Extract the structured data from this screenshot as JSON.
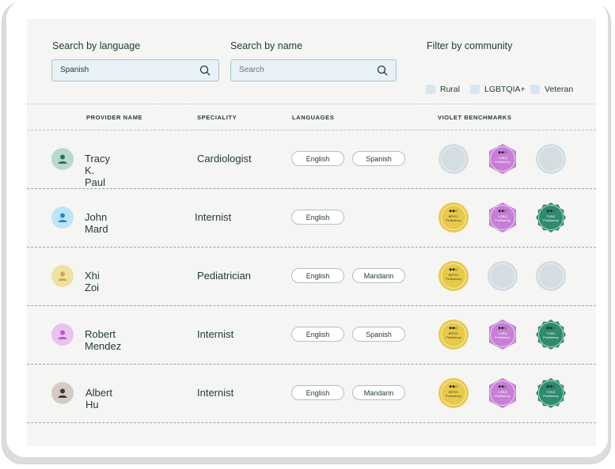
{
  "search": {
    "language_label": "Search by language",
    "language_value": "Spanish",
    "name_label": "Search by name",
    "name_placeholder": "Search"
  },
  "filter": {
    "label": "Filter by community",
    "options": [
      "Rural",
      "LGBTQIA+",
      "Veteran"
    ]
  },
  "columns": [
    "PROVIDER NAME",
    "SPECIALITY",
    "LANGUAGES",
    "VIOLET BENCHMARKS"
  ],
  "providers": [
    {
      "name": "Tracy K. Paul",
      "speciality": "Cardiologist",
      "languages": [
        "English",
        "Spanish"
      ],
      "avatar_bg": "#b7d9d2",
      "avatar_fg": "#2e6f63",
      "benchmarks": [
        "empty",
        "lgbtq",
        "empty"
      ]
    },
    {
      "name": "John Mard",
      "speciality": "Internist",
      "languages": [
        "English"
      ],
      "avatar_bg": "#bfe3f7",
      "avatar_fg": "#2b88c4",
      "benchmarks": [
        "bipoc",
        "lgbtq",
        "tgnc"
      ]
    },
    {
      "name": "Xhi Zoi",
      "speciality": "Pediatrician",
      "languages": [
        "English",
        "Mandarin"
      ],
      "avatar_bg": "#f1e1a0",
      "avatar_fg": "#c9a84a",
      "benchmarks": [
        "bipoc",
        "empty",
        "empty"
      ]
    },
    {
      "name": "Robert Mendez",
      "speciality": "Internist",
      "languages": [
        "English",
        "Spanish"
      ],
      "avatar_bg": "#ebc1ef",
      "avatar_fg": "#b25fc0",
      "benchmarks": [
        "bipoc",
        "lgbtq",
        "tgnc"
      ]
    },
    {
      "name": "Albert Hu",
      "speciality": "Internist",
      "languages": [
        "English",
        "Mandarin"
      ],
      "avatar_bg": "#d6cbc4",
      "avatar_fg": "#3a3a3a",
      "benchmarks": [
        "bipoc",
        "lgbtq",
        "tgnc"
      ]
    }
  ],
  "badge_text": {
    "bipoc": [
      "BIPOC",
      "Proficiency"
    ],
    "lgbtq": [
      "LGBQ",
      "Proficiency"
    ],
    "tgnc": [
      "TGNC",
      "Proficiency"
    ]
  },
  "colors": {
    "bipoc": "#e8c94a",
    "lgbtq": "#c77fd6",
    "tgnc": "#2f8a6e",
    "empty": "#d3dde2",
    "accent_text": "#1e3a34"
  },
  "icons": {
    "search": "search-icon",
    "avatar": "person-icon"
  }
}
